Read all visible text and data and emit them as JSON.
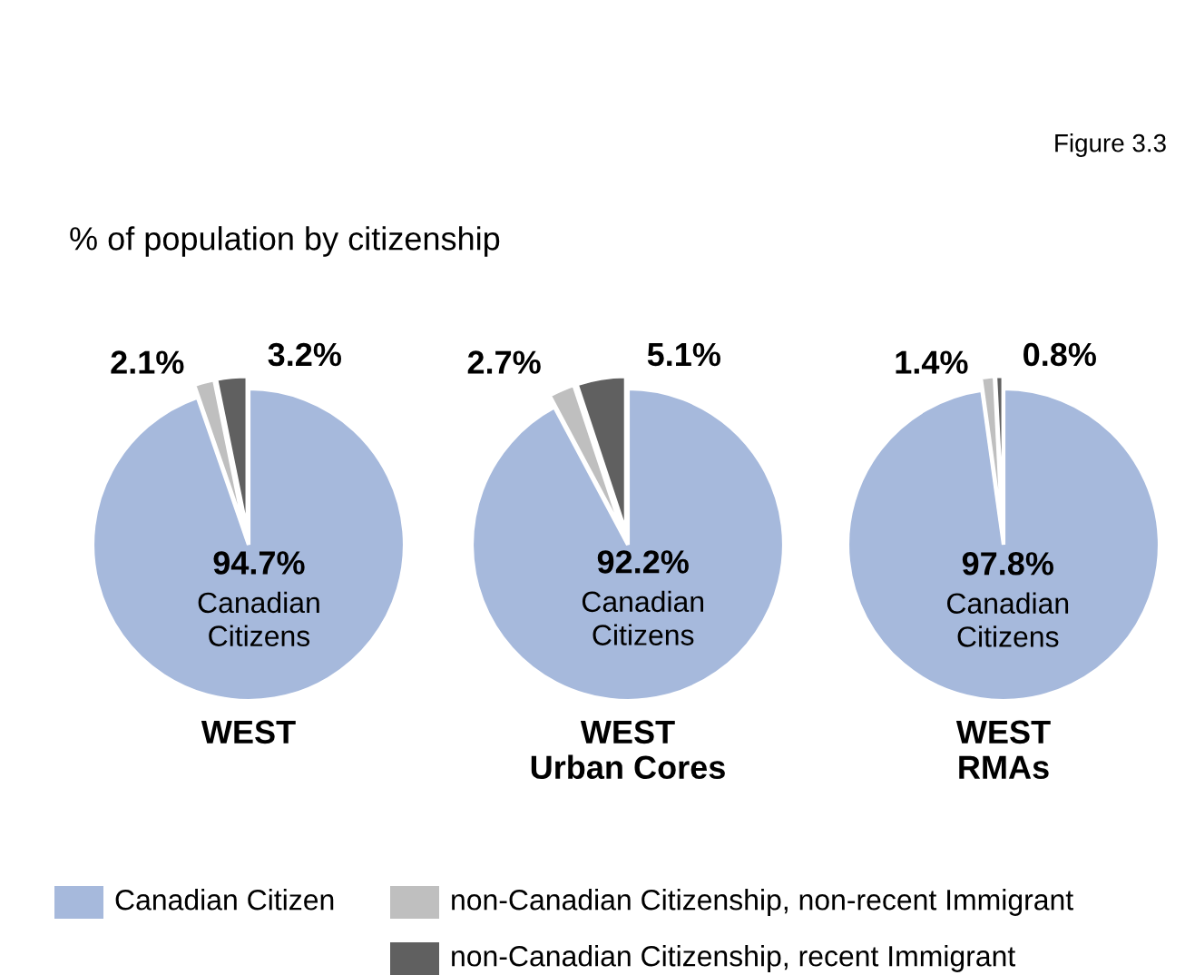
{
  "chart_data": [
    {
      "type": "pie",
      "title": "WEST",
      "categories": [
        "Canadian Citizen",
        "non-Canadian Citizenship, non-recent Immigrant",
        "non-Canadian Citizenship, recent Immigrant"
      ],
      "values": [
        94.7,
        2.1,
        3.2
      ],
      "colors": [
        "#a6b9dc",
        "#bfbfbf",
        "#606060"
      ],
      "value_labels": [
        "94.7%\nCanadian\nCitizens",
        "2.1%",
        "3.2%"
      ],
      "legend": "bottom",
      "annotations": [
        "Figure 3.3",
        "% of population by citizenship"
      ]
    },
    {
      "type": "pie",
      "title": "WEST\nUrban Cores",
      "values": [
        92.2,
        2.7,
        5.1
      ],
      "colors": [
        "#a6b9dc",
        "#bfbfbf",
        "#606060"
      ],
      "value_labels": [
        "92.2%\nCanadian\nCitizens",
        "2.7%",
        "5.1%"
      ]
    },
    {
      "type": "pie",
      "title": "WEST\nRMAs",
      "values": [
        97.8,
        1.4,
        0.8
      ],
      "colors": [
        "#a6b9dc",
        "#bfbfbf",
        "#606060"
      ],
      "value_labels": [
        "97.8%\nCanadian\nCitizens",
        "1.4%",
        "0.8%"
      ]
    }
  ]
}
